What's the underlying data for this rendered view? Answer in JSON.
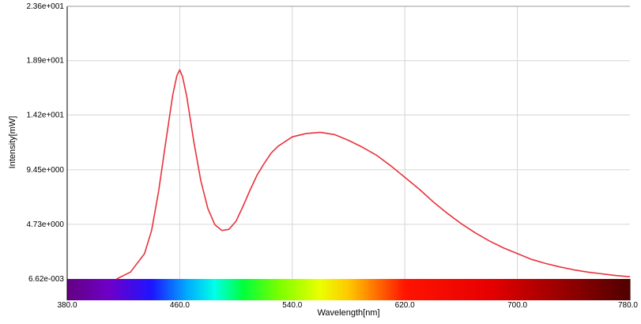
{
  "chart_data": {
    "type": "line",
    "title": "",
    "xlabel": "Wavelength[nm]",
    "ylabel": "Intensity[mW]",
    "xlim": [
      380.0,
      780.0
    ],
    "ylim": [
      0.00662,
      23.6
    ],
    "x_ticks": [
      380.0,
      460.0,
      540.0,
      620.0,
      700.0,
      780.0
    ],
    "x_tick_labels": [
      "380.0",
      "460.0",
      "540.0",
      "620.0",
      "700.0",
      "780.0"
    ],
    "y_ticks": [
      0.00662,
      4.73,
      9.45,
      14.2,
      18.9,
      23.6
    ],
    "y_tick_labels": [
      "6.62e-003",
      "4.73e+000",
      "9.45e+000",
      "1.42e+001",
      "1.89e+001",
      "2.36e+001"
    ],
    "grid": true,
    "spectrum_bar": true,
    "series": [
      {
        "color": "#e8323c",
        "x": [
          415,
          425,
          435,
          440,
          445,
          450,
          455,
          458,
          460,
          462,
          465,
          470,
          475,
          480,
          485,
          490,
          495,
          500,
          505,
          510,
          515,
          520,
          525,
          530,
          540,
          550,
          560,
          570,
          580,
          590,
          600,
          610,
          620,
          630,
          640,
          650,
          660,
          670,
          680,
          690,
          700,
          710,
          720,
          730,
          740,
          750,
          760,
          770,
          780
        ],
        "y": [
          0.0,
          0.6,
          2.2,
          4.2,
          7.6,
          11.8,
          15.9,
          17.6,
          18.1,
          17.5,
          15.8,
          11.9,
          8.5,
          6.1,
          4.7,
          4.2,
          4.3,
          5.0,
          6.3,
          7.7,
          9.0,
          10.0,
          10.9,
          11.5,
          12.3,
          12.6,
          12.7,
          12.5,
          12.0,
          11.4,
          10.7,
          9.8,
          8.8,
          7.8,
          6.7,
          5.7,
          4.8,
          4.0,
          3.3,
          2.7,
          2.2,
          1.7,
          1.35,
          1.05,
          0.8,
          0.6,
          0.45,
          0.3,
          0.2
        ]
      }
    ]
  }
}
